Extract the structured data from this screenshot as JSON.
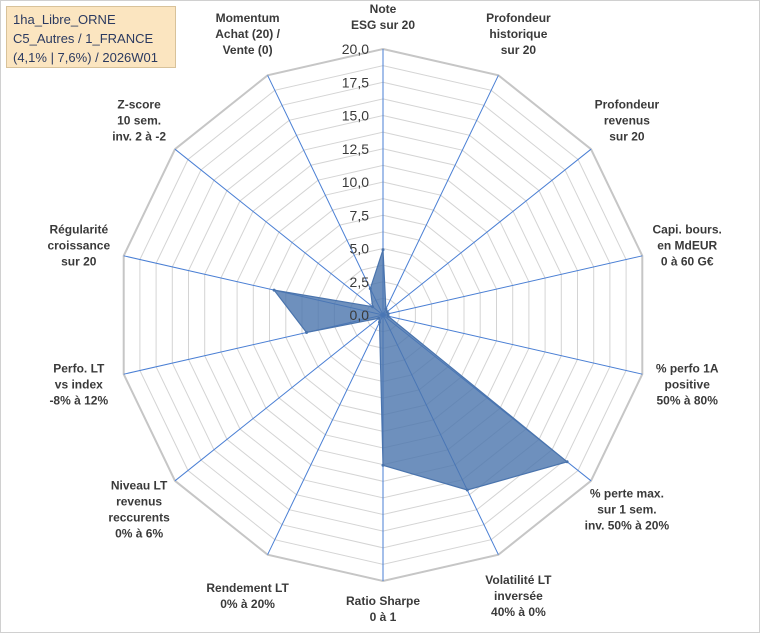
{
  "info": {
    "line1": "1ha_Libre_ORNE",
    "line2": "C5_Autres / 1_FRANCE",
    "line3": "(4,1% | 7,6%) / 2026W01"
  },
  "colors": {
    "series_fill": "#4a74ad",
    "series_stroke": "#4a74ad",
    "grid": "#d4d4d4",
    "spoke": "#4a7fd4"
  },
  "chart_data": {
    "type": "radar",
    "title": "",
    "rlim": [
      0,
      20
    ],
    "tick_step": 2.5,
    "minor_rings": 16,
    "ticks": [
      "0,0",
      "2,5",
      "5,0",
      "7,5",
      "10,0",
      "12,5",
      "15,0",
      "17,5",
      "20,0"
    ],
    "categories": [
      [
        "Note",
        "ESG sur 20"
      ],
      [
        "Profondeur",
        "historique",
        "sur 20"
      ],
      [
        "Profondeur",
        "revenus",
        "sur 20"
      ],
      [
        "Capi. bours.",
        "en MdEUR",
        "0 à 60 G€"
      ],
      [
        "% perfo 1A",
        "positive",
        "50% à 80%"
      ],
      [
        "% perte max.",
        "sur 1 sem.",
        "inv. 50% à 20%"
      ],
      [
        "Volatilité LT",
        "inversée",
        "40% à 0%"
      ],
      [
        "Ratio Sharpe",
        "0 à 1"
      ],
      [
        "Rendement LT",
        "0% à 20%"
      ],
      [
        "Niveau LT",
        "revenus",
        "reccurents",
        "0% à 6%"
      ],
      [
        "Perfo. LT",
        "vs index",
        "-8% à 12%"
      ],
      [
        "Régularité",
        "croissance",
        "sur 20"
      ],
      [
        "Z-score",
        "10 sem.",
        "inv. 2 à -2"
      ],
      [
        "Momentum",
        "Achat (20) /",
        "Vente (0)"
      ]
    ],
    "series": [
      {
        "name": "1ha_Libre_ORNE",
        "values": [
          4.9,
          0.5,
          0.4,
          0.4,
          0.4,
          17.7,
          14.6,
          11.3,
          0.6,
          0.4,
          5.9,
          8.4,
          1.0,
          2.2
        ]
      }
    ]
  }
}
